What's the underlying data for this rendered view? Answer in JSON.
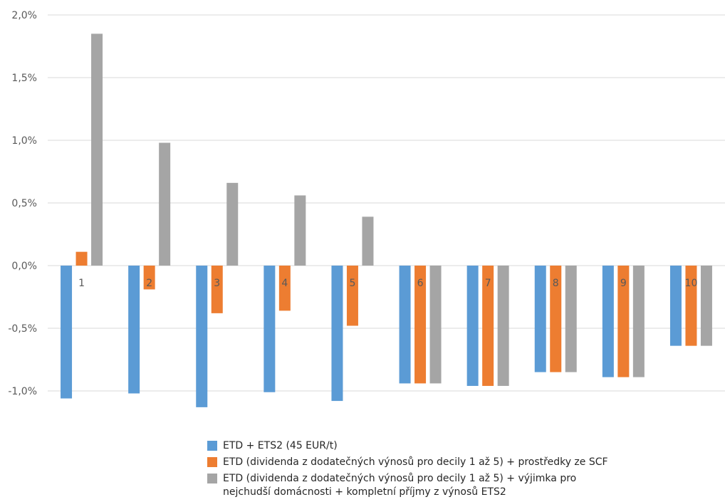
{
  "chart_data": {
    "type": "bar",
    "categories": [
      "1",
      "2",
      "3",
      "4",
      "5",
      "6",
      "7",
      "8",
      "9",
      "10"
    ],
    "series": [
      {
        "name": "ETD + ETS2 (45 EUR/t)",
        "color": "#5B9BD5",
        "values": [
          -1.06,
          -1.02,
          -1.13,
          -1.01,
          -1.08,
          -0.94,
          -0.96,
          -0.85,
          -0.89,
          -0.64
        ]
      },
      {
        "name": "ETD (dividenda z dodatečných výnosů pro decily 1 až 5) + prostředky ze SCF",
        "color": "#ED7D31",
        "values": [
          0.11,
          -0.19,
          -0.38,
          -0.36,
          -0.48,
          -0.94,
          -0.96,
          -0.85,
          -0.89,
          -0.64
        ]
      },
      {
        "name": "ETD (dividenda z dodatečných výnosů pro decily 1 až 5) + výjimka pro nejchudší domácnosti + kompletní příjmy z výnosů ETS2",
        "color": "#A5A5A5",
        "values": [
          1.85,
          0.98,
          0.66,
          0.56,
          0.39,
          -0.94,
          -0.96,
          -0.85,
          -0.89,
          -0.64
        ]
      }
    ],
    "y_ticks": [
      "2,0%",
      "1,5%",
      "1,0%",
      "0,5%",
      "0,0%",
      "-0,5%",
      "-1,0%"
    ],
    "ylim": [
      -1.1,
      2.0
    ],
    "grid": true,
    "legend_position": "bottom",
    "xlabel": "",
    "ylabel": ""
  }
}
